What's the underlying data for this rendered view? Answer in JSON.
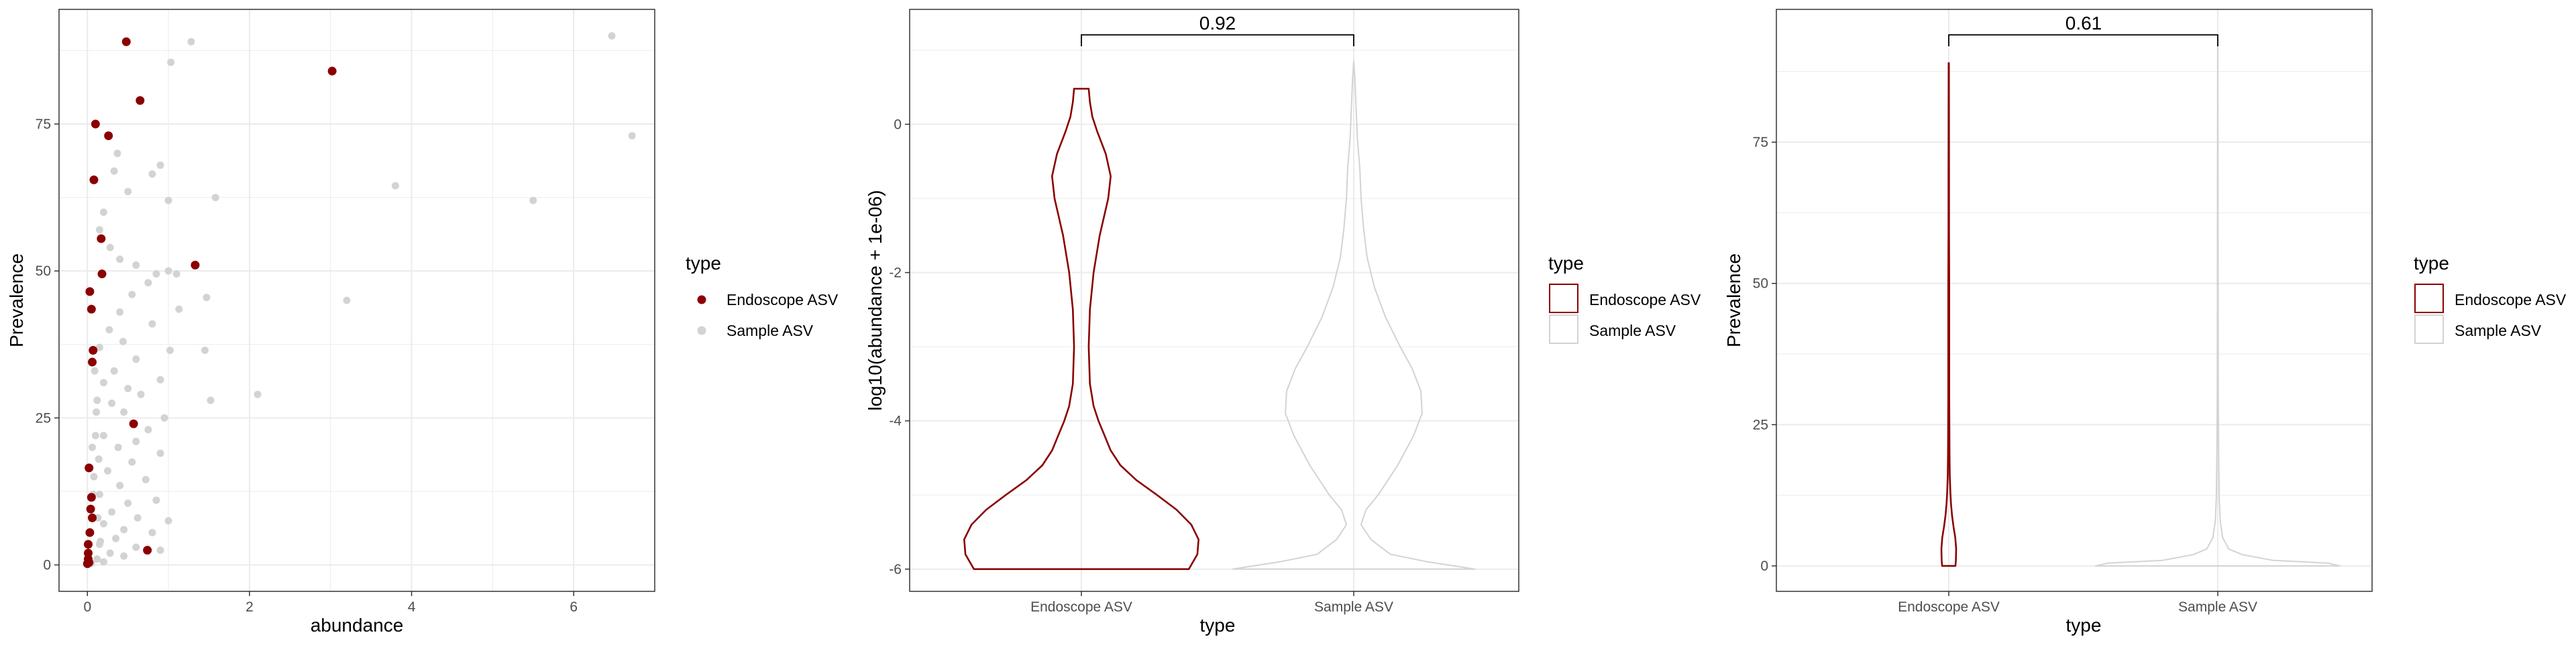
{
  "colors": {
    "endoscope": "#8b0000",
    "sample": "#d3d3d3",
    "grid": "#ebebeb",
    "frame": "#333333",
    "tick_text": "#4d4d4d"
  },
  "chart_data": [
    {
      "type": "scatter",
      "xlabel": "abundance",
      "ylabel": "Prevalence",
      "xlim": [
        -0.35,
        7.0
      ],
      "ylim": [
        -4.5,
        94.5
      ],
      "x_ticks": [
        0,
        2,
        4,
        6
      ],
      "x_tick_labels": [
        "0",
        "2",
        "4",
        "6"
      ],
      "y_ticks": [
        0,
        25,
        50,
        75
      ],
      "y_tick_labels": [
        "0",
        "25",
        "50",
        "75"
      ],
      "grid": true,
      "legend": {
        "title": "type",
        "position": "right",
        "items": [
          {
            "label": "Endoscope ASV",
            "color": "#8b0000"
          },
          {
            "label": "Sample ASV",
            "color": "#d3d3d3"
          }
        ]
      },
      "series": [
        {
          "name": "Endoscope ASV",
          "points": [
            [
              0.48,
              89
            ],
            [
              3.02,
              84
            ],
            [
              0.65,
              79
            ],
            [
              0.1,
              75
            ],
            [
              0.26,
              73
            ],
            [
              0.08,
              65.5
            ],
            [
              1.33,
              51
            ],
            [
              0.18,
              49.5
            ],
            [
              0.17,
              55.5
            ],
            [
              0.03,
              46.5
            ],
            [
              0.05,
              43.5
            ],
            [
              0.07,
              36.5
            ],
            [
              0.06,
              34.5
            ],
            [
              0.57,
              24
            ],
            [
              0.02,
              16.5
            ],
            [
              0.05,
              11.5
            ],
            [
              0.04,
              9.5
            ],
            [
              0.06,
              8
            ],
            [
              0.03,
              5.5
            ],
            [
              0.01,
              3.5
            ],
            [
              0.01,
              2
            ],
            [
              0.74,
              2.5
            ],
            [
              0.01,
              1
            ],
            [
              0.02,
              0.4
            ],
            [
              0.0,
              0.2
            ]
          ]
        },
        {
          "name": "Sample ASV",
          "points": [
            [
              1.28,
              89
            ],
            [
              6.47,
              90
            ],
            [
              1.03,
              85.5
            ],
            [
              6.72,
              73
            ],
            [
              0.9,
              68
            ],
            [
              0.37,
              70
            ],
            [
              0.33,
              67
            ],
            [
              0.5,
              63.5
            ],
            [
              0.8,
              66.5
            ],
            [
              1.0,
              62
            ],
            [
              1.58,
              62.5
            ],
            [
              3.8,
              64.5
            ],
            [
              5.5,
              62
            ],
            [
              0.2,
              60
            ],
            [
              0.15,
              57
            ],
            [
              0.28,
              54
            ],
            [
              0.4,
              52
            ],
            [
              0.6,
              51
            ],
            [
              0.85,
              49.5
            ],
            [
              1.1,
              49.5
            ],
            [
              1.0,
              50
            ],
            [
              0.75,
              48
            ],
            [
              0.55,
              46
            ],
            [
              1.47,
              45.5
            ],
            [
              3.2,
              45
            ],
            [
              0.4,
              43
            ],
            [
              1.13,
              43.5
            ],
            [
              0.8,
              41
            ],
            [
              0.27,
              40
            ],
            [
              0.44,
              38
            ],
            [
              0.15,
              37
            ],
            [
              1.02,
              36.5
            ],
            [
              1.45,
              36.5
            ],
            [
              0.6,
              35
            ],
            [
              0.33,
              33
            ],
            [
              0.9,
              31.5
            ],
            [
              0.2,
              31
            ],
            [
              0.5,
              30
            ],
            [
              0.66,
              29
            ],
            [
              2.1,
              29
            ],
            [
              1.52,
              28
            ],
            [
              0.3,
              27.5
            ],
            [
              0.95,
              25
            ],
            [
              0.45,
              26
            ],
            [
              0.75,
              23
            ],
            [
              0.2,
              22
            ],
            [
              0.6,
              21
            ],
            [
              0.38,
              20
            ],
            [
              0.9,
              19
            ],
            [
              0.55,
              17.5
            ],
            [
              0.25,
              16
            ],
            [
              0.72,
              14.5
            ],
            [
              0.4,
              13.5
            ],
            [
              0.15,
              12
            ],
            [
              0.85,
              11
            ],
            [
              0.5,
              10.5
            ],
            [
              0.3,
              9
            ],
            [
              0.62,
              8
            ],
            [
              0.2,
              7
            ],
            [
              1.0,
              7.5
            ],
            [
              0.45,
              6
            ],
            [
              0.8,
              5.5
            ],
            [
              0.35,
              4.5
            ],
            [
              0.15,
              3.5
            ],
            [
              0.6,
              3
            ],
            [
              0.9,
              2.5
            ],
            [
              0.28,
              2
            ],
            [
              0.45,
              1.5
            ],
            [
              0.12,
              1
            ],
            [
              0.2,
              0.5
            ],
            [
              0.05,
              0.3
            ],
            [
              0.08,
              15
            ],
            [
              0.1,
              22
            ],
            [
              0.12,
              28
            ],
            [
              0.09,
              33
            ],
            [
              0.14,
              18
            ],
            [
              0.11,
              26
            ],
            [
              0.07,
              12
            ],
            [
              0.06,
              20
            ],
            [
              0.13,
              8
            ],
            [
              0.16,
              4
            ]
          ]
        }
      ]
    },
    {
      "type": "violin",
      "xlabel": "type",
      "ylabel": "log10(abundance + 1e-06)",
      "categories": [
        "Endoscope ASV",
        "Sample ASV"
      ],
      "ylim": [
        -6.3,
        1.55
      ],
      "y_ticks": [
        0,
        -2,
        -4,
        -6
      ],
      "y_tick_labels": [
        "0",
        "-2",
        "-4",
        "-6"
      ],
      "grid": true,
      "comparison": {
        "label": "0.92",
        "groups": [
          "Endoscope ASV",
          "Sample ASV"
        ]
      },
      "legend": {
        "title": "type",
        "position": "right",
        "items": [
          {
            "label": "Endoscope ASV",
            "color": "#8b0000"
          },
          {
            "label": "Sample ASV",
            "color": "#d3d3d3"
          }
        ]
      },
      "series": [
        {
          "name": "Endoscope ASV",
          "range": [
            -6,
            0.48
          ],
          "profile": [
            [
              -6.0,
              0.88
            ],
            [
              -5.8,
              0.95
            ],
            [
              -5.6,
              0.96
            ],
            [
              -5.4,
              0.9
            ],
            [
              -5.2,
              0.78
            ],
            [
              -5.0,
              0.62
            ],
            [
              -4.8,
              0.45
            ],
            [
              -4.6,
              0.32
            ],
            [
              -4.4,
              0.24
            ],
            [
              -4.2,
              0.19
            ],
            [
              -4.0,
              0.14
            ],
            [
              -3.8,
              0.1
            ],
            [
              -3.5,
              0.07
            ],
            [
              -3.0,
              0.06
            ],
            [
              -2.5,
              0.07
            ],
            [
              -2.0,
              0.1
            ],
            [
              -1.5,
              0.15
            ],
            [
              -1.0,
              0.22
            ],
            [
              -0.7,
              0.24
            ],
            [
              -0.4,
              0.2
            ],
            [
              -0.1,
              0.13
            ],
            [
              0.1,
              0.09
            ],
            [
              0.3,
              0.07
            ],
            [
              0.48,
              0.06
            ]
          ]
        },
        {
          "name": "Sample ASV",
          "range": [
            -6,
            0.85
          ],
          "profile": [
            [
              -6.0,
              0.99
            ],
            [
              -5.9,
              0.6
            ],
            [
              -5.8,
              0.3
            ],
            [
              -5.6,
              0.14
            ],
            [
              -5.4,
              0.06
            ],
            [
              -5.2,
              0.1
            ],
            [
              -5.0,
              0.2
            ],
            [
              -4.6,
              0.36
            ],
            [
              -4.2,
              0.49
            ],
            [
              -3.9,
              0.56
            ],
            [
              -3.6,
              0.55
            ],
            [
              -3.3,
              0.48
            ],
            [
              -3.0,
              0.38
            ],
            [
              -2.6,
              0.26
            ],
            [
              -2.2,
              0.17
            ],
            [
              -1.8,
              0.11
            ],
            [
              -1.4,
              0.08
            ],
            [
              -1.0,
              0.06
            ],
            [
              -0.6,
              0.05
            ],
            [
              -0.2,
              0.03
            ],
            [
              0.2,
              0.02
            ],
            [
              0.6,
              0.01
            ],
            [
              0.85,
              0.0
            ]
          ]
        }
      ]
    },
    {
      "type": "violin",
      "xlabel": "type",
      "ylabel": "Prevalence",
      "categories": [
        "Endoscope ASV",
        "Sample ASV"
      ],
      "ylim": [
        -4.5,
        98.5
      ],
      "y_ticks": [
        0,
        25,
        50,
        75
      ],
      "y_tick_labels": [
        "0",
        "25",
        "50",
        "75"
      ],
      "grid": true,
      "comparison": {
        "label": "0.61",
        "groups": [
          "Endoscope ASV",
          "Sample ASV"
        ]
      },
      "legend": {
        "title": "type",
        "position": "right",
        "items": [
          {
            "label": "Endoscope ASV",
            "color": "#8b0000"
          },
          {
            "label": "Sample ASV",
            "color": "#d3d3d3"
          }
        ]
      },
      "series": [
        {
          "name": "Endoscope ASV",
          "range": [
            0,
            89
          ],
          "profile": [
            [
              0,
              0.045
            ],
            [
              1,
              0.048
            ],
            [
              3,
              0.05
            ],
            [
              5,
              0.044
            ],
            [
              7,
              0.032
            ],
            [
              9,
              0.022
            ],
            [
              11,
              0.015
            ],
            [
              13,
              0.011
            ],
            [
              16,
              0.007
            ],
            [
              20,
              0.005
            ],
            [
              30,
              0.003
            ],
            [
              40,
              0.003
            ],
            [
              50,
              0.003
            ],
            [
              60,
              0.002
            ],
            [
              70,
              0.002
            ],
            [
              80,
              0.0015
            ],
            [
              89,
              0.001
            ]
          ]
        },
        {
          "name": "Sample ASV",
          "range": [
            0,
            92
          ],
          "profile": [
            [
              0,
              1.0
            ],
            [
              0.5,
              0.9
            ],
            [
              1,
              0.45
            ],
            [
              2,
              0.2
            ],
            [
              3,
              0.09
            ],
            [
              5,
              0.04
            ],
            [
              8,
              0.02
            ],
            [
              12,
              0.012
            ],
            [
              20,
              0.007
            ],
            [
              30,
              0.004
            ],
            [
              50,
              0.003
            ],
            [
              70,
              0.002
            ],
            [
              92,
              0.0005
            ]
          ]
        }
      ]
    }
  ]
}
